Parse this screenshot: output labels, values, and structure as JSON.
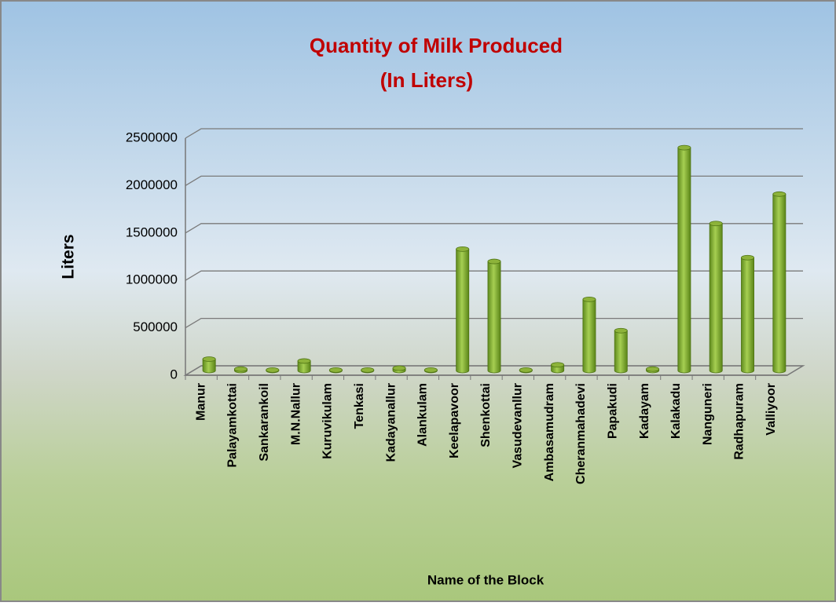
{
  "chart_data": {
    "type": "bar3d",
    "title": "Quantity  of Milk Produced",
    "subtitle": "(In Liters)",
    "xlabel": "Name of the Block",
    "ylabel": "Liters",
    "categories": [
      "Manur",
      "Palayamkottai",
      "Sankarankoil",
      "M.N.Nallur",
      "Kuruvikulam",
      "Tenkasi",
      "Kadayanallur",
      "Alankulam",
      "Keelapavoor",
      "Shenkottai",
      "Vasudevanllur",
      "Ambasamudram",
      "Cheranmahadevi",
      "Papakudi",
      "Kadayam",
      "Kalakadu",
      "Nanguneri",
      "Radhapuram",
      "Valliyoor"
    ],
    "values": [
      120000,
      15000,
      5000,
      100000,
      5000,
      5000,
      25000,
      5000,
      1280000,
      1150000,
      5000,
      60000,
      750000,
      420000,
      15000,
      2350000,
      1550000,
      1190000,
      1860000
    ],
    "color": "#8db33a",
    "ylim": [
      0,
      2500000
    ],
    "yticks": [
      0,
      500000,
      1000000,
      1500000,
      2000000,
      2500000
    ],
    "grid": true
  }
}
